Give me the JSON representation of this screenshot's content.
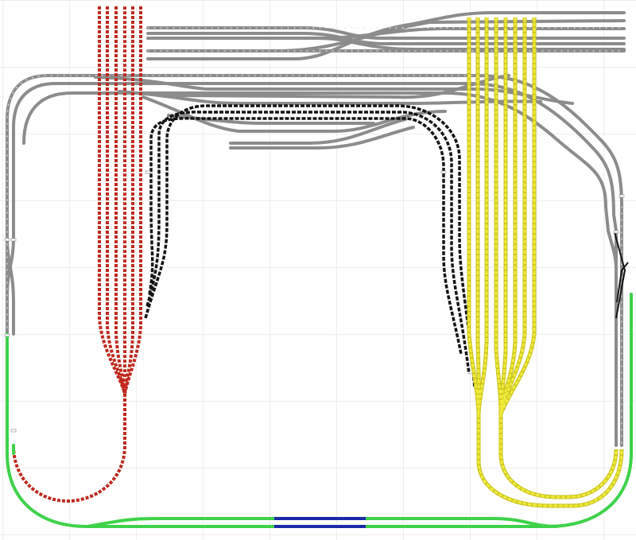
{
  "colors": {
    "background": "#ffffff",
    "grid": "#dcdcdc",
    "grey_track": "#8c8c8c",
    "grey_track_tie": "#e6e6e6",
    "red_track": "#c0281e",
    "black_track": "#141414",
    "yellow_track": "#f0ea3a",
    "yellow_track_edge": "#c8c21e",
    "green_track": "#3ed24a",
    "blue_track": "#1c2aa8",
    "joint_marker": "#ffffff"
  },
  "track_groups": [
    {
      "name": "grey-mainline-and-yard",
      "color": "grey"
    },
    {
      "name": "red-staging-fan",
      "color": "red"
    },
    {
      "name": "black-reversing-loops",
      "color": "black"
    },
    {
      "name": "yellow-staging-fan",
      "color": "yellow"
    },
    {
      "name": "green-return-loop",
      "color": "green"
    },
    {
      "name": "blue-section",
      "color": "blue"
    }
  ]
}
